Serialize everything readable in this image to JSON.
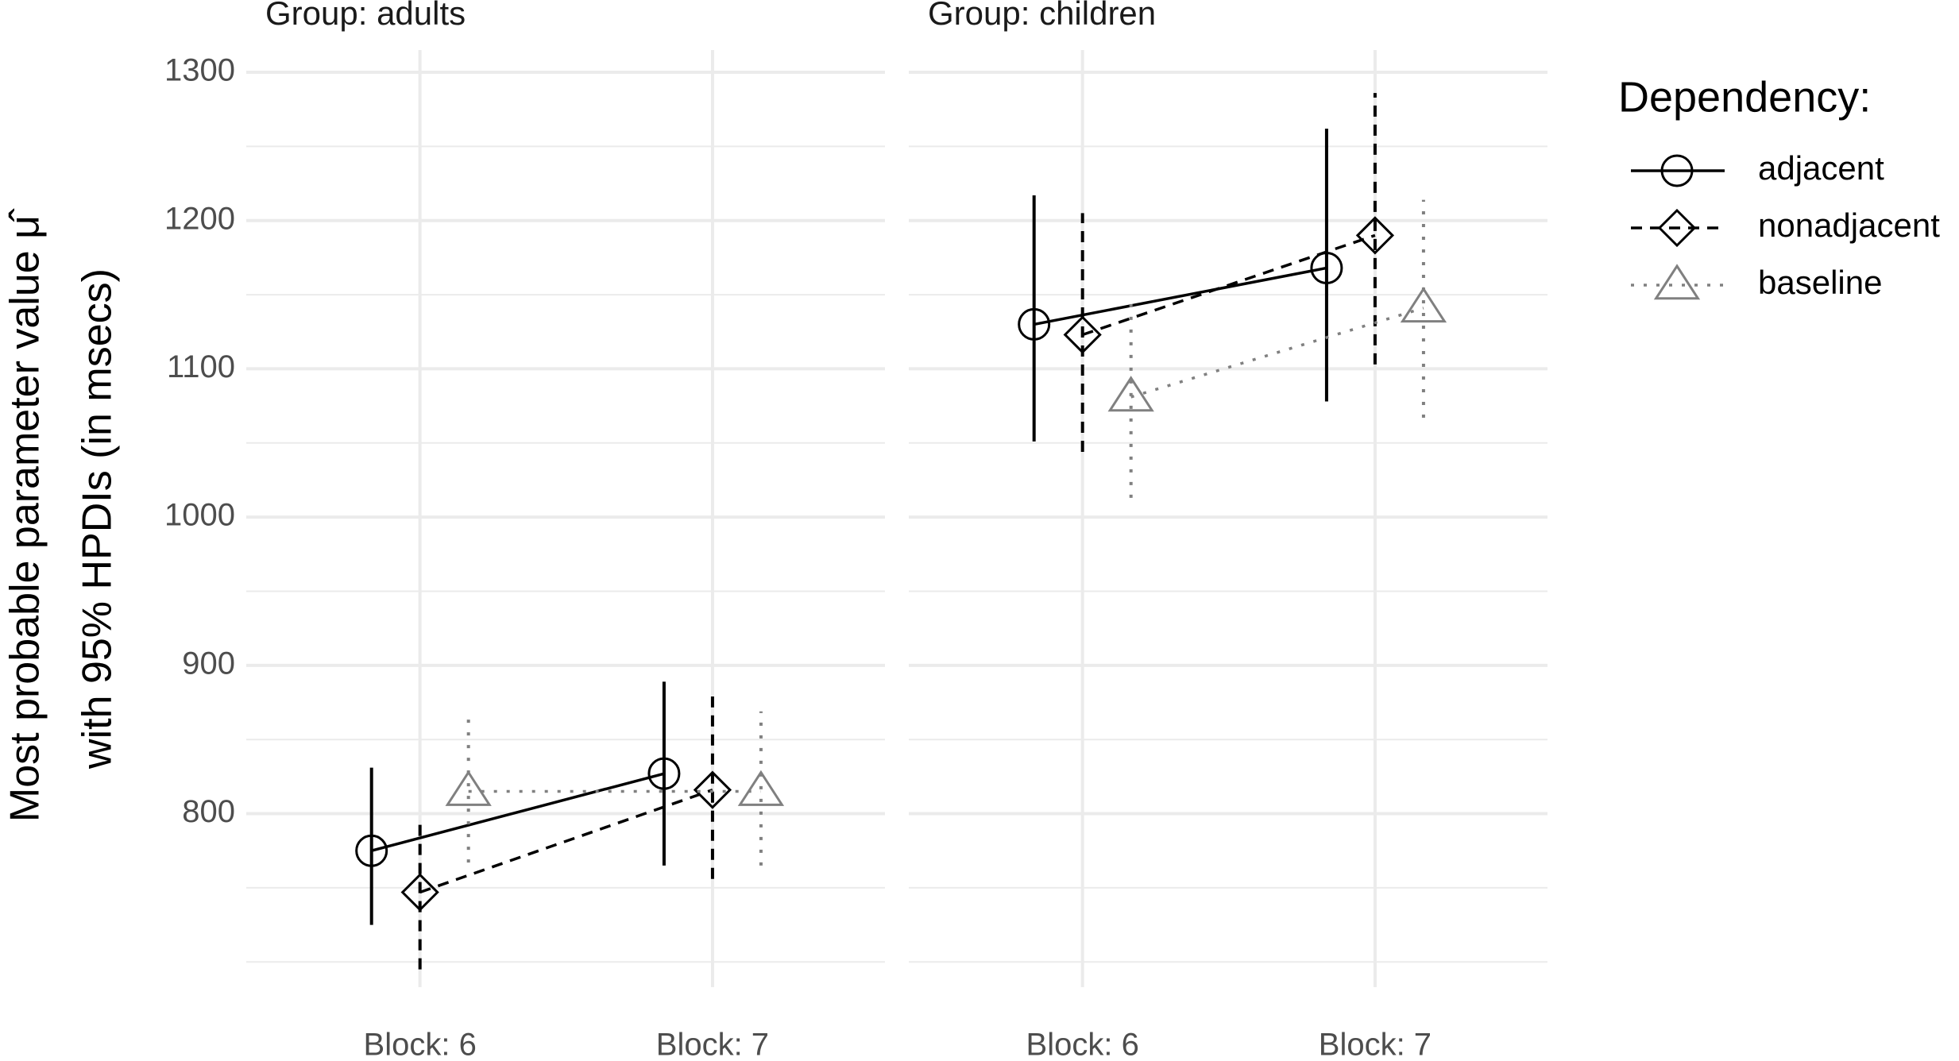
{
  "chart_data": {
    "type": "line",
    "ylabel": [
      "Most probable parameter value μ̂",
      "with 95% HPDIs (in msecs)"
    ],
    "legend_title": "Dependency:",
    "legend_position": "right",
    "ylim": [
      683,
      1315
    ],
    "yticks": [
      800,
      900,
      1000,
      1100,
      1200,
      1300
    ],
    "minor_yticks": [
      700,
      750,
      850,
      950,
      1050,
      1150,
      1250
    ],
    "grid": true,
    "categories": [
      "Block: 6",
      "Block: 7"
    ],
    "series": [
      {
        "name": "adjacent",
        "color": "#000000",
        "linestyle": "solid",
        "marker": "circle"
      },
      {
        "name": "nonadjacent",
        "color": "#000000",
        "linestyle": "dashed",
        "marker": "diamond"
      },
      {
        "name": "baseline",
        "color": "#808080",
        "linestyle": "dotted",
        "marker": "triangle"
      }
    ],
    "facets": [
      {
        "title": "Group: adults",
        "series": [
          {
            "values": [
              775,
              827
            ],
            "lower": [
              725,
              765
            ],
            "upper": [
              831,
              889
            ]
          },
          {
            "values": [
              747,
              816
            ],
            "lower": [
              695,
              756
            ],
            "upper": [
              797,
              879
            ]
          },
          {
            "values": [
              815,
              815
            ],
            "lower": [
              767,
              765
            ],
            "upper": [
              867,
              869
            ]
          }
        ]
      },
      {
        "title": "Group: children",
        "series": [
          {
            "values": [
              1130,
              1168
            ],
            "lower": [
              1051,
              1078
            ],
            "upper": [
              1217,
              1262
            ]
          },
          {
            "values": [
              1123,
              1190
            ],
            "lower": [
              1044,
              1103
            ],
            "upper": [
              1205,
              1286
            ]
          },
          {
            "values": [
              1081,
              1141
            ],
            "lower": [
              1013,
              1067
            ],
            "upper": [
              1148,
              1214
            ]
          }
        ]
      }
    ]
  }
}
